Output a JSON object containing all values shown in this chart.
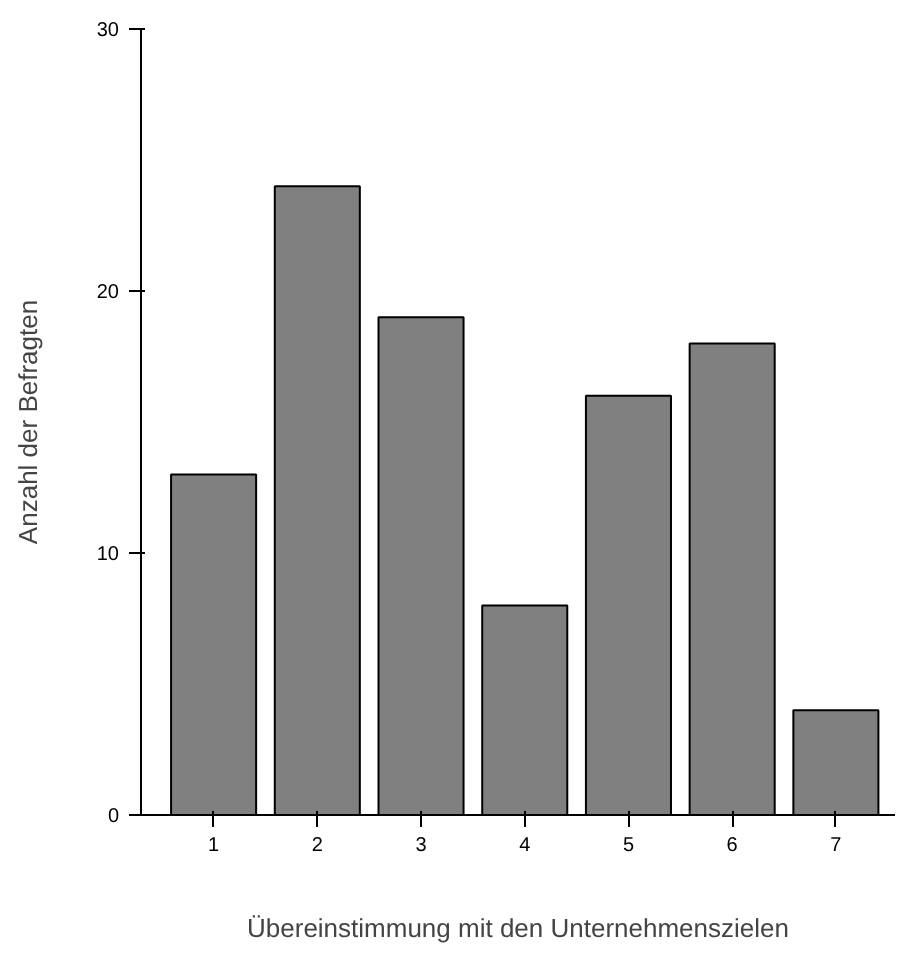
{
  "chart_data": {
    "type": "bar",
    "xlabel": "Übereinstimmung mit den Unternehmenszielen",
    "ylabel": "Anzahl der Befragten",
    "categories": [
      "1",
      "2",
      "3",
      "4",
      "5",
      "6",
      "7"
    ],
    "values": [
      13,
      24,
      19,
      8,
      16,
      18,
      4
    ],
    "color": "#808080",
    "ylim": [
      0,
      30
    ],
    "yticks": [
      0,
      10,
      20,
      30
    ],
    "grid": false
  }
}
